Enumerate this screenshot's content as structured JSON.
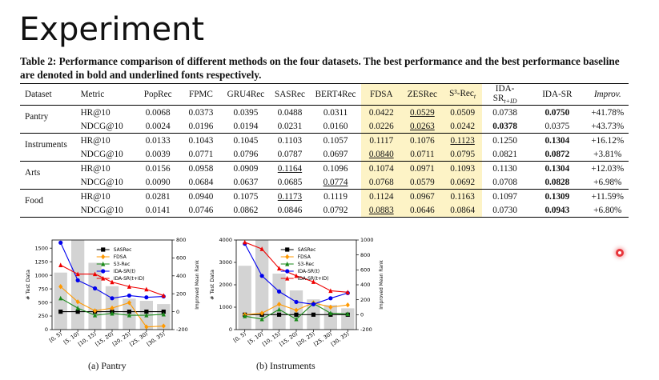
{
  "slide_title": "Experiment",
  "caption": "Table 2: Performance comparison of different methods on the four datasets. The best performance and the best performance baseline are denoted in bold and underlined fonts respectively.",
  "table": {
    "headers": [
      "Dataset",
      "Metric",
      "PopRec",
      "FPMC",
      "GRU4Rec",
      "SASRec",
      "BERT4Rec",
      "FDSA",
      "ZESRec",
      "S³-Rec",
      "IDA-SR",
      "IDA-SR",
      "Improv."
    ],
    "header_subscripts": {
      "9": "t",
      "10": "t+ID"
    },
    "highlight_cols": [
      7,
      8,
      9
    ],
    "rows": [
      {
        "dataset": "Pantry",
        "metric": "HR@10",
        "values": [
          "0.0068",
          "0.0373",
          "0.0395",
          "0.0488",
          "0.0311",
          "0.0422",
          "0.0529",
          "0.0509",
          "0.0738",
          "0.0750",
          "+41.78%"
        ],
        "bold": [
          9
        ],
        "underline": [
          6
        ]
      },
      {
        "dataset": "",
        "metric": "NDCG@10",
        "values": [
          "0.0024",
          "0.0196",
          "0.0194",
          "0.0231",
          "0.0160",
          "0.0226",
          "0.0263",
          "0.0242",
          "0.0378",
          "0.0375",
          "+43.73%"
        ],
        "bold": [
          8
        ],
        "underline": [
          6
        ]
      },
      {
        "dataset": "Instruments",
        "metric": "HR@10",
        "values": [
          "0.0133",
          "0.1043",
          "0.1045",
          "0.1103",
          "0.1057",
          "0.1117",
          "0.1076",
          "0.1123",
          "0.1250",
          "0.1304",
          "+16.12%"
        ],
        "bold": [
          9
        ],
        "underline": [
          7
        ]
      },
      {
        "dataset": "",
        "metric": "NDCG@10",
        "values": [
          "0.0039",
          "0.0771",
          "0.0796",
          "0.0787",
          "0.0697",
          "0.0840",
          "0.0711",
          "0.0795",
          "0.0821",
          "0.0872",
          "+3.81%"
        ],
        "bold": [
          9
        ],
        "underline": [
          5
        ]
      },
      {
        "dataset": "Arts",
        "metric": "HR@10",
        "values": [
          "0.0156",
          "0.0958",
          "0.0909",
          "0.1164",
          "0.1096",
          "0.1074",
          "0.0971",
          "0.1093",
          "0.1130",
          "0.1304",
          "+12.03%"
        ],
        "bold": [
          9
        ],
        "underline": [
          3
        ]
      },
      {
        "dataset": "",
        "metric": "NDCG@10",
        "values": [
          "0.0090",
          "0.0684",
          "0.0637",
          "0.0685",
          "0.0774",
          "0.0768",
          "0.0579",
          "0.0692",
          "0.0708",
          "0.0828",
          "+6.98%"
        ],
        "bold": [
          9
        ],
        "underline": [
          4
        ]
      },
      {
        "dataset": "Food",
        "metric": "HR@10",
        "values": [
          "0.0281",
          "0.0940",
          "0.1075",
          "0.1173",
          "0.1119",
          "0.1124",
          "0.0967",
          "0.1163",
          "0.1097",
          "0.1309",
          "+11.59%"
        ],
        "bold": [
          9
        ],
        "underline": [
          3
        ]
      },
      {
        "dataset": "",
        "metric": "NDCG@10",
        "values": [
          "0.0141",
          "0.0746",
          "0.0862",
          "0.0846",
          "0.0792",
          "0.0883",
          "0.0646",
          "0.0864",
          "0.0730",
          "0.0943",
          "+6.80%"
        ],
        "bold": [
          9
        ],
        "underline": [
          5
        ]
      }
    ]
  },
  "chart_data": [
    {
      "type": "bar",
      "subcaption": "(a) Pantry",
      "categories": [
        "[0, 5)",
        "[5, 10)",
        "[10, 15)",
        "[15, 20)",
        "[20, 25)",
        "[25, 30)",
        "[30, 35)"
      ],
      "bars": {
        "values": [
          1050,
          1650,
          1230,
          800,
          570,
          530,
          470
        ],
        "color": "#d3d3d3"
      },
      "ylabel": "# Test Data",
      "ylim": [
        0,
        1650
      ],
      "yticks": [
        0,
        250,
        500,
        750,
        1000,
        1250,
        1500
      ],
      "y2label": "Improved Mean Rank",
      "y2lim": [
        -200,
        800
      ],
      "y2ticks": [
        -200,
        0,
        200,
        400,
        600,
        800
      ],
      "series": [
        {
          "name": "SASRec",
          "color": "#000000",
          "marker": "square",
          "values": [
            0,
            0,
            0,
            0,
            0,
            0,
            0
          ]
        },
        {
          "name": "FDSA",
          "color": "#ff9900",
          "marker": "diamond",
          "values": [
            280,
            110,
            10,
            40,
            100,
            -170,
            -160
          ]
        },
        {
          "name": "S3-Rec",
          "color": "#1a8a1a",
          "marker": "triangle",
          "values": [
            150,
            40,
            -40,
            -20,
            -40,
            -40,
            -30
          ]
        },
        {
          "name": "IDA-SR(t)",
          "color": "#0000ee",
          "marker": "circle",
          "values": [
            770,
            350,
            260,
            150,
            180,
            160,
            170
          ]
        },
        {
          "name": "IDA-SR(t+ID)",
          "color": "#ee0000",
          "marker": "triangle",
          "values": [
            520,
            420,
            420,
            330,
            280,
            250,
            180
          ]
        }
      ]
    },
    {
      "type": "bar",
      "subcaption": "(b) Instruments",
      "categories": [
        "[0, 5)",
        "[5, 10)",
        "[10, 15)",
        "[15, 20)",
        "[20, 25)",
        "[25, 30)",
        "[30, 35)"
      ],
      "bars": {
        "values": [
          2850,
          4000,
          2500,
          1750,
          1350,
          1100,
          950
        ],
        "color": "#d3d3d3"
      },
      "ylabel": "# Test Data",
      "ylim": [
        0,
        4000
      ],
      "yticks": [
        0,
        1000,
        2000,
        3000,
        4000
      ],
      "y2label": "Improved Mean Rank",
      "y2lim": [
        -200,
        1000
      ],
      "y2ticks": [
        -200,
        0,
        200,
        400,
        600,
        800,
        1000
      ],
      "series": [
        {
          "name": "SASRec",
          "color": "#000000",
          "marker": "square",
          "values": [
            0,
            0,
            0,
            0,
            0,
            0,
            0
          ]
        },
        {
          "name": "FDSA",
          "color": "#ff9900",
          "marker": "diamond",
          "values": [
            0,
            20,
            140,
            60,
            160,
            100,
            130
          ]
        },
        {
          "name": "S3-Rec",
          "color": "#1a8a1a",
          "marker": "triangle",
          "values": [
            -20,
            -60,
            70,
            -60,
            150,
            20,
            10
          ]
        },
        {
          "name": "IDA-SR(t)",
          "color": "#0000ee",
          "marker": "circle",
          "values": [
            950,
            520,
            310,
            170,
            140,
            220,
            290
          ]
        },
        {
          "name": "IDA-SR(t+ID)",
          "color": "#ee0000",
          "marker": "triangle",
          "values": [
            970,
            880,
            620,
            520,
            440,
            320,
            300
          ]
        }
      ]
    }
  ]
}
